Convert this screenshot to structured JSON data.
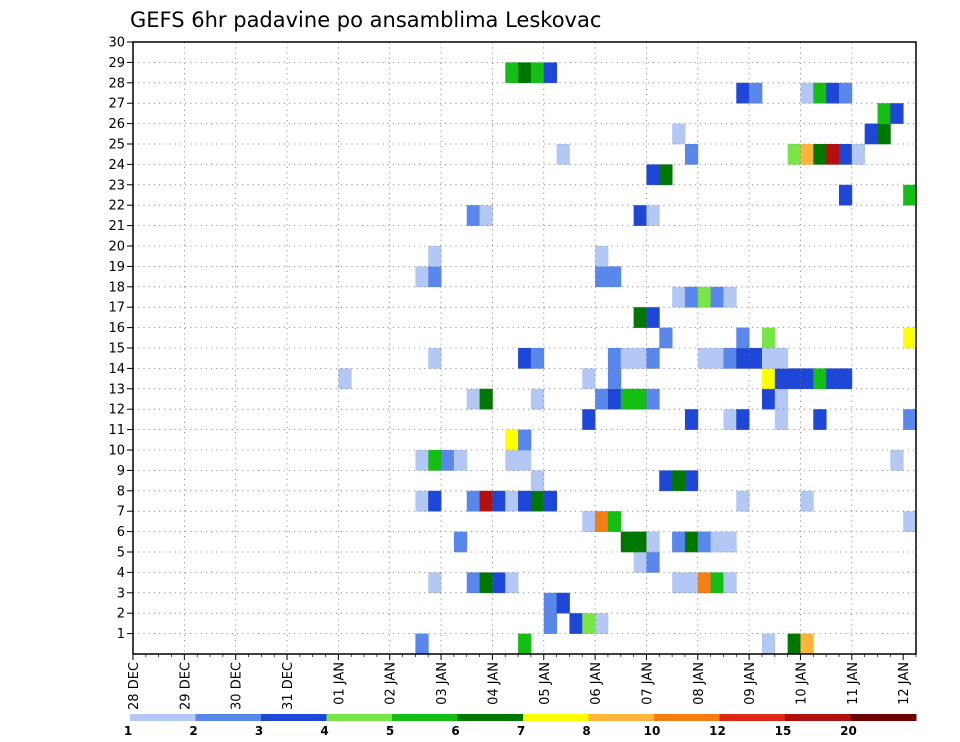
{
  "chart_data": {
    "type": "heatmap",
    "title": "GEFS 6hr padavine po ansamblima Leskovac",
    "xlabel": "",
    "ylabel": "",
    "x_ticks": [
      "28 DEC",
      "29 DEC",
      "30 DEC",
      "31 DEC",
      "01 JAN",
      "02 JAN",
      "03 JAN",
      "04 JAN",
      "05 JAN",
      "06 JAN",
      "07 JAN",
      "08 JAN",
      "09 JAN",
      "10 JAN",
      "11 JAN",
      "12 JAN"
    ],
    "y_ticks": [
      1,
      2,
      3,
      4,
      5,
      6,
      7,
      8,
      9,
      10,
      11,
      12,
      13,
      14,
      15,
      16,
      17,
      18,
      19,
      20,
      21,
      22,
      23,
      24,
      25,
      26,
      27,
      28,
      29,
      30
    ],
    "ylim": [
      0,
      30
    ],
    "time_steps": 61,
    "grid": "dotted",
    "legend": {
      "labels": [
        "1",
        "2",
        "3",
        "4",
        "5",
        "6",
        "7",
        "8",
        "10",
        "12",
        "15",
        "20"
      ],
      "colors": [
        "#b4c8f5",
        "#5a87eb",
        "#1e46d7",
        "#78e646",
        "#14be14",
        "#007800",
        "#ffff00",
        "#ffb43c",
        "#f57d14",
        "#dc2814",
        "#b40f0f",
        "#6e0000"
      ]
    },
    "cells": [
      [
        1,
        30,
        4
      ],
      [
        1,
        22,
        1
      ],
      [
        1,
        49,
        0
      ],
      [
        1,
        51,
        5
      ],
      [
        1,
        52,
        7
      ],
      [
        2,
        32,
        1
      ],
      [
        2,
        34,
        2
      ],
      [
        2,
        35,
        3
      ],
      [
        2,
        36,
        0
      ],
      [
        3,
        32,
        1
      ],
      [
        3,
        33,
        2
      ],
      [
        4,
        23,
        0
      ],
      [
        4,
        26,
        1
      ],
      [
        4,
        27,
        5
      ],
      [
        4,
        28,
        2
      ],
      [
        4,
        29,
        0
      ],
      [
        4,
        42,
        0
      ],
      [
        4,
        43,
        0
      ],
      [
        4,
        44,
        8
      ],
      [
        4,
        45,
        4
      ],
      [
        4,
        46,
        0
      ],
      [
        5,
        39,
        0
      ],
      [
        5,
        40,
        1
      ],
      [
        6,
        25,
        1
      ],
      [
        6,
        38,
        5
      ],
      [
        6,
        39,
        5
      ],
      [
        6,
        40,
        0
      ],
      [
        6,
        42,
        1
      ],
      [
        6,
        43,
        5
      ],
      [
        6,
        44,
        1
      ],
      [
        6,
        45,
        0
      ],
      [
        6,
        46,
        0
      ],
      [
        7,
        35,
        0
      ],
      [
        7,
        36,
        8
      ],
      [
        7,
        37,
        4
      ],
      [
        7,
        60,
        0
      ],
      [
        8,
        22,
        0
      ],
      [
        8,
        23,
        2
      ],
      [
        8,
        26,
        1
      ],
      [
        8,
        27,
        10
      ],
      [
        8,
        28,
        2
      ],
      [
        8,
        29,
        0
      ],
      [
        8,
        30,
        2
      ],
      [
        8,
        31,
        5
      ],
      [
        8,
        32,
        2
      ],
      [
        8,
        47,
        0
      ],
      [
        8,
        52,
        0
      ],
      [
        9,
        31,
        0
      ],
      [
        9,
        41,
        2
      ],
      [
        9,
        42,
        5
      ],
      [
        9,
        43,
        2
      ],
      [
        10,
        22,
        0
      ],
      [
        10,
        23,
        4
      ],
      [
        10,
        24,
        1
      ],
      [
        10,
        25,
        0
      ],
      [
        10,
        29,
        0
      ],
      [
        10,
        30,
        0
      ],
      [
        10,
        59,
        0
      ],
      [
        11,
        29,
        6
      ],
      [
        11,
        30,
        1
      ],
      [
        12,
        35,
        2
      ],
      [
        12,
        43,
        2
      ],
      [
        12,
        46,
        0
      ],
      [
        12,
        47,
        2
      ],
      [
        12,
        50,
        0
      ],
      [
        12,
        53,
        2
      ],
      [
        12,
        60,
        1
      ],
      [
        13,
        26,
        0
      ],
      [
        13,
        27,
        5
      ],
      [
        13,
        31,
        0
      ],
      [
        13,
        36,
        1
      ],
      [
        13,
        37,
        2
      ],
      [
        13,
        38,
        4
      ],
      [
        13,
        39,
        4
      ],
      [
        13,
        40,
        1
      ],
      [
        13,
        49,
        2
      ],
      [
        13,
        50,
        0
      ],
      [
        14,
        16,
        0
      ],
      [
        14,
        35,
        0
      ],
      [
        14,
        37,
        1
      ],
      [
        14,
        49,
        6
      ],
      [
        14,
        50,
        2
      ],
      [
        14,
        51,
        2
      ],
      [
        14,
        52,
        2
      ],
      [
        14,
        53,
        4
      ],
      [
        14,
        54,
        2
      ],
      [
        14,
        55,
        2
      ],
      [
        15,
        23,
        0
      ],
      [
        15,
        30,
        2
      ],
      [
        15,
        31,
        1
      ],
      [
        15,
        37,
        1
      ],
      [
        15,
        38,
        0
      ],
      [
        15,
        39,
        0
      ],
      [
        15,
        40,
        1
      ],
      [
        15,
        44,
        0
      ],
      [
        15,
        45,
        0
      ],
      [
        15,
        46,
        1
      ],
      [
        15,
        47,
        2
      ],
      [
        15,
        48,
        2
      ],
      [
        15,
        49,
        0
      ],
      [
        15,
        50,
        0
      ],
      [
        16,
        41,
        1
      ],
      [
        16,
        47,
        1
      ],
      [
        16,
        49,
        3
      ],
      [
        16,
        60,
        6
      ],
      [
        17,
        39,
        5
      ],
      [
        17,
        40,
        2
      ],
      [
        18,
        42,
        0
      ],
      [
        18,
        43,
        1
      ],
      [
        18,
        44,
        3
      ],
      [
        18,
        45,
        1
      ],
      [
        18,
        46,
        0
      ],
      [
        19,
        22,
        0
      ],
      [
        19,
        23,
        1
      ],
      [
        19,
        36,
        1
      ],
      [
        19,
        37,
        1
      ],
      [
        20,
        23,
        0
      ],
      [
        20,
        36,
        0
      ],
      [
        22,
        26,
        1
      ],
      [
        22,
        27,
        0
      ],
      [
        22,
        39,
        2
      ],
      [
        22,
        40,
        0
      ],
      [
        23,
        55,
        2
      ],
      [
        23,
        60,
        4
      ],
      [
        24,
        40,
        2
      ],
      [
        24,
        41,
        5
      ],
      [
        25,
        33,
        0
      ],
      [
        25,
        43,
        1
      ],
      [
        25,
        51,
        3
      ],
      [
        25,
        52,
        7
      ],
      [
        25,
        53,
        5
      ],
      [
        25,
        54,
        10
      ],
      [
        25,
        55,
        2
      ],
      [
        25,
        56,
        0
      ],
      [
        26,
        42,
        0
      ],
      [
        26,
        57,
        2
      ],
      [
        26,
        58,
        5
      ],
      [
        27,
        58,
        4
      ],
      [
        27,
        59,
        2
      ],
      [
        28,
        47,
        2
      ],
      [
        28,
        48,
        1
      ],
      [
        28,
        52,
        0
      ],
      [
        28,
        53,
        4
      ],
      [
        28,
        54,
        2
      ],
      [
        28,
        55,
        1
      ],
      [
        29,
        29,
        4
      ],
      [
        29,
        30,
        5
      ],
      [
        29,
        31,
        4
      ],
      [
        29,
        32,
        2
      ]
    ]
  }
}
